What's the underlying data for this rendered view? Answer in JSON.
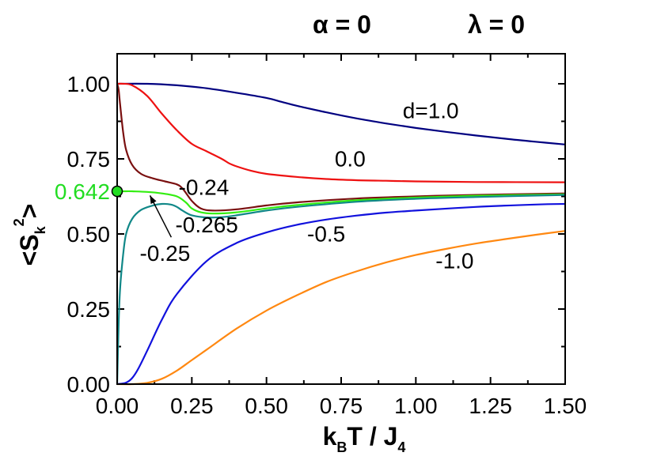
{
  "chart_data": {
    "type": "line",
    "header": {
      "alpha_label": "α = 0",
      "lambda_label": "λ = 0"
    },
    "xlabel": {
      "main": "k",
      "sub": "B",
      "rest": "T / J",
      "sub2": "4"
    },
    "ylabel": {
      "open": "<S",
      "sub": "k",
      "sup": "2",
      "close": ">"
    },
    "xlim": [
      0,
      1.5
    ],
    "ylim": [
      0,
      1.1
    ],
    "xticks": [
      0,
      0.25,
      0.5,
      0.75,
      1.0,
      1.25,
      1.5
    ],
    "xtick_labels": [
      "0.00",
      "0.25",
      "0.50",
      "0.75",
      "1.00",
      "1.25",
      "1.50"
    ],
    "yticks": [
      0,
      0.25,
      0.5,
      0.75,
      1.0
    ],
    "ytick_labels": [
      "0.00",
      "0.25",
      "0.50",
      "0.75",
      "1.00"
    ],
    "highlight": {
      "label": "0.642",
      "value": 0.642,
      "color": "#22dd22"
    },
    "series": [
      {
        "name": "d=1.0",
        "color": "#000080",
        "label": "d=1.0",
        "label_at": [
          1.05,
          0.885
        ],
        "x": [
          0,
          0.1,
          0.2,
          0.3,
          0.4,
          0.5,
          0.55,
          0.6,
          0.7,
          0.8,
          0.9,
          1.0,
          1.1,
          1.2,
          1.3,
          1.4,
          1.5
        ],
        "y": [
          1.0,
          1.0,
          0.995,
          0.985,
          0.97,
          0.953,
          0.94,
          0.927,
          0.905,
          0.885,
          0.868,
          0.853,
          0.84,
          0.828,
          0.817,
          0.807,
          0.798
        ]
      },
      {
        "name": "0.0",
        "color": "#ee1111",
        "label": "0.0",
        "label_at": [
          0.78,
          0.725
        ],
        "x": [
          0,
          0.02,
          0.05,
          0.1,
          0.15,
          0.2,
          0.25,
          0.3,
          0.35,
          0.375,
          0.4,
          0.45,
          0.5,
          0.6,
          0.7,
          0.8,
          0.9,
          1.0,
          1.2,
          1.5
        ],
        "y": [
          1.0,
          1.0,
          0.995,
          0.96,
          0.9,
          0.845,
          0.8,
          0.775,
          0.75,
          0.735,
          0.725,
          0.71,
          0.7,
          0.69,
          0.683,
          0.679,
          0.677,
          0.675,
          0.673,
          0.672
        ]
      },
      {
        "name": "-0.24",
        "color": "#7a1010",
        "label": "-0.24",
        "label_at": [
          0.29,
          0.63
        ],
        "x": [
          0,
          0.005,
          0.01,
          0.02,
          0.03,
          0.05,
          0.08,
          0.12,
          0.16,
          0.2,
          0.22,
          0.25,
          0.28,
          0.32,
          0.4,
          0.5,
          0.6,
          0.8,
          1.0,
          1.2,
          1.5
        ],
        "y": [
          1.0,
          0.98,
          0.93,
          0.84,
          0.78,
          0.73,
          0.7,
          0.685,
          0.675,
          0.665,
          0.65,
          0.61,
          0.585,
          0.578,
          0.582,
          0.595,
          0.605,
          0.618,
          0.625,
          0.63,
          0.635
        ]
      },
      {
        "name": "-0.25",
        "color": "#33ee11",
        "label": "-0.25",
        "label_at": [
          0.16,
          0.41
        ],
        "x": [
          0,
          0.02,
          0.05,
          0.1,
          0.15,
          0.2,
          0.23,
          0.25,
          0.28,
          0.32,
          0.4,
          0.5,
          0.6,
          0.8,
          1.0,
          1.2,
          1.5
        ],
        "y": [
          0.642,
          0.642,
          0.642,
          0.64,
          0.635,
          0.625,
          0.605,
          0.585,
          0.572,
          0.568,
          0.572,
          0.585,
          0.596,
          0.612,
          0.621,
          0.627,
          0.632
        ]
      },
      {
        "name": "-0.265",
        "color": "#118888",
        "label": "-0.265",
        "label_at": [
          0.3,
          0.505
        ],
        "x": [
          0,
          0.005,
          0.01,
          0.02,
          0.03,
          0.05,
          0.08,
          0.12,
          0.15,
          0.18,
          0.2,
          0.22,
          0.25,
          0.3,
          0.35,
          0.4,
          0.5,
          0.6,
          0.8,
          1.0,
          1.2,
          1.5
        ],
        "y": [
          0,
          0.2,
          0.32,
          0.43,
          0.5,
          0.55,
          0.58,
          0.595,
          0.6,
          0.598,
          0.59,
          0.577,
          0.562,
          0.555,
          0.556,
          0.562,
          0.578,
          0.59,
          0.607,
          0.617,
          0.623,
          0.63
        ]
      },
      {
        "name": "-0.5",
        "color": "#1111dd",
        "label": "-0.5",
        "label_at": [
          0.7,
          0.475
        ],
        "x": [
          0,
          0.03,
          0.05,
          0.07,
          0.1,
          0.15,
          0.2,
          0.3,
          0.4,
          0.5,
          0.6,
          0.7,
          0.8,
          0.9,
          1.0,
          1.2,
          1.4,
          1.5
        ],
        "y": [
          0,
          0.005,
          0.02,
          0.05,
          0.11,
          0.215,
          0.3,
          0.41,
          0.47,
          0.505,
          0.53,
          0.548,
          0.561,
          0.571,
          0.578,
          0.59,
          0.598,
          0.6
        ]
      },
      {
        "name": "-1.0",
        "color": "#ff8811",
        "label": "-1.0",
        "label_at": [
          1.13,
          0.385
        ],
        "x": [
          0,
          0.05,
          0.1,
          0.15,
          0.2,
          0.25,
          0.3,
          0.4,
          0.5,
          0.6,
          0.7,
          0.8,
          0.9,
          1.0,
          1.1,
          1.2,
          1.3,
          1.4,
          1.5
        ],
        "y": [
          0,
          0,
          0.004,
          0.018,
          0.045,
          0.08,
          0.115,
          0.185,
          0.245,
          0.295,
          0.34,
          0.375,
          0.405,
          0.43,
          0.45,
          0.468,
          0.483,
          0.497,
          0.51
        ]
      }
    ],
    "arrow_for": "-0.25"
  }
}
